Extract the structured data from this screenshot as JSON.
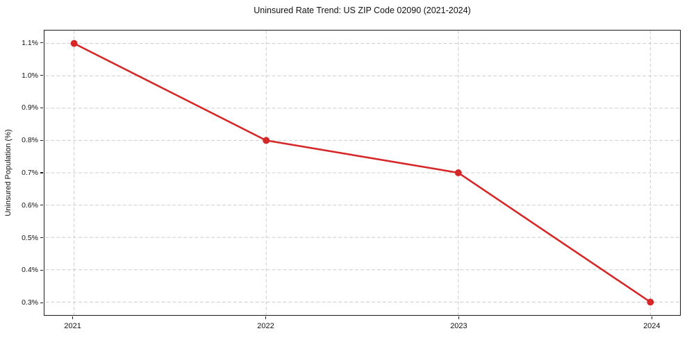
{
  "title": "Uninsured Rate Trend: US ZIP Code 02090 (2021-2024)",
  "chart_data": {
    "type": "line",
    "title": "Uninsured Rate Trend: US ZIP Code 02090 (2021-2024)",
    "xlabel": "",
    "ylabel": "Uninsured Population (%)",
    "x": [
      2021,
      2022,
      2023,
      2024
    ],
    "values": [
      1.1,
      0.8,
      0.7,
      0.3
    ],
    "x_tick_labels": [
      "2021",
      "2022",
      "2023",
      "2024"
    ],
    "y_ticks": [
      0.3,
      0.4,
      0.5,
      0.6,
      0.7,
      0.8,
      0.9,
      1.0,
      1.1
    ],
    "y_tick_labels": [
      "0.3%",
      "0.4%",
      "0.5%",
      "0.6%",
      "0.7%",
      "0.8%",
      "0.9%",
      "1.0%",
      "1.1%"
    ],
    "xlim": [
      2020.85,
      2024.15
    ],
    "ylim": [
      0.26,
      1.14
    ],
    "grid": true,
    "grid_style": "dashed",
    "grid_color": "#cccccc",
    "line_color": "#d62728",
    "marker": "circle",
    "marker_size": 5,
    "line_width": 2.6,
    "legend": "none"
  }
}
